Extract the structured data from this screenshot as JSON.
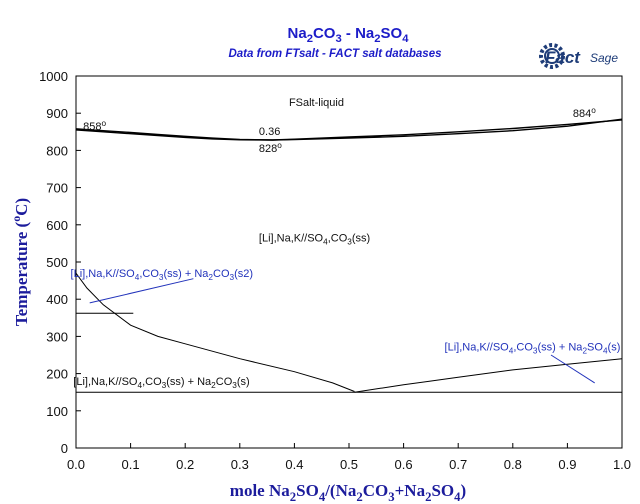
{
  "chart_data": {
    "type": "line",
    "title": {
      "parts": [
        "Na",
        "2",
        "CO",
        "3",
        " - Na",
        "2",
        "SO",
        "4"
      ]
    },
    "subtitle": "Data from FTsalt - FACT salt databases",
    "xlabel": {
      "parts": [
        "mole Na",
        "2",
        "SO",
        "4",
        "/(Na",
        "2",
        "CO",
        "3",
        "+Na",
        "2",
        "SO",
        "4",
        ")"
      ]
    },
    "ylabel": {
      "main": "Temperature (",
      "deg": "o",
      "tail": "C)"
    },
    "xlim": [
      0,
      1
    ],
    "ylim": [
      0,
      1000
    ],
    "x_ticks": [
      "0.0",
      "0.1",
      "0.2",
      "0.3",
      "0.4",
      "0.5",
      "0.6",
      "0.7",
      "0.8",
      "0.9",
      "1.0"
    ],
    "y_ticks": [
      "0",
      "100",
      "200",
      "300",
      "400",
      "500",
      "600",
      "700",
      "800",
      "900",
      "1000"
    ],
    "logo": {
      "brand": "Fact",
      "suffix": "Sage"
    },
    "series": [
      {
        "id": "liquidus",
        "color": "#000000",
        "width": 1.4,
        "points": [
          [
            0,
            858
          ],
          [
            0.05,
            853
          ],
          [
            0.1,
            848
          ],
          [
            0.15,
            843
          ],
          [
            0.2,
            838
          ],
          [
            0.25,
            833
          ],
          [
            0.3,
            829.5
          ],
          [
            0.36,
            828
          ],
          [
            0.4,
            829
          ],
          [
            0.5,
            833
          ],
          [
            0.6,
            838
          ],
          [
            0.7,
            845
          ],
          [
            0.8,
            853
          ],
          [
            0.9,
            865
          ],
          [
            1.0,
            884
          ]
        ]
      },
      {
        "id": "solidus",
        "color": "#000000",
        "width": 1.4,
        "points": [
          [
            0,
            855
          ],
          [
            0.05,
            850
          ],
          [
            0.1,
            845
          ],
          [
            0.15,
            840
          ],
          [
            0.2,
            835
          ],
          [
            0.25,
            831
          ],
          [
            0.3,
            828.5
          ],
          [
            0.36,
            828
          ],
          [
            0.4,
            830
          ],
          [
            0.5,
            836
          ],
          [
            0.6,
            842
          ],
          [
            0.7,
            850
          ],
          [
            0.8,
            859
          ],
          [
            0.9,
            870
          ],
          [
            1.0,
            882
          ]
        ]
      },
      {
        "id": "solvus-left",
        "color": "#000000",
        "width": 1,
        "points": [
          [
            0,
            470
          ],
          [
            0.02,
            430
          ],
          [
            0.05,
            385
          ],
          [
            0.1,
            330
          ],
          [
            0.15,
            300
          ],
          [
            0.2,
            280
          ],
          [
            0.3,
            240
          ],
          [
            0.4,
            205
          ],
          [
            0.47,
            175
          ],
          [
            0.51,
            152
          ]
        ]
      },
      {
        "id": "solvus-right",
        "color": "#000000",
        "width": 1,
        "points": [
          [
            0.51,
            150
          ],
          [
            0.6,
            170
          ],
          [
            0.7,
            190
          ],
          [
            0.8,
            210
          ],
          [
            0.9,
            225
          ],
          [
            1.0,
            240
          ]
        ]
      },
      {
        "id": "eutectoid",
        "color": "#000000",
        "width": 1,
        "points": [
          [
            0,
            150
          ],
          [
            1.0,
            150
          ]
        ]
      },
      {
        "id": "transition-362",
        "color": "#000000",
        "width": 1,
        "points": [
          [
            0,
            362
          ],
          [
            0.105,
            362
          ]
        ]
      },
      {
        "id": "pointer-left",
        "color": "#2233bb",
        "width": 1,
        "points": [
          [
            0.025,
            390
          ],
          [
            0.215,
            455
          ]
        ]
      },
      {
        "id": "pointer-right",
        "color": "#2233bb",
        "width": 1,
        "points": [
          [
            0.87,
            250
          ],
          [
            0.95,
            175
          ]
        ]
      }
    ],
    "labels": [
      {
        "id": "liquid-label",
        "x": 0.39,
        "y": 920,
        "parts": [
          "FSalt-liquid"
        ],
        "color": "black"
      },
      {
        "id": "mp-left",
        "x": 0.013,
        "y": 855,
        "parts": [
          "858"
        ],
        "deg": true,
        "color": "black"
      },
      {
        "id": "mp-right",
        "x": 0.91,
        "y": 890,
        "parts": [
          "884"
        ],
        "deg": true,
        "color": "black"
      },
      {
        "id": "min-x",
        "x": 0.335,
        "y": 842,
        "parts": [
          "0.36"
        ],
        "color": "black"
      },
      {
        "id": "min-t",
        "x": 0.335,
        "y": 796,
        "parts": [
          "828"
        ],
        "deg": true,
        "color": "black"
      },
      {
        "id": "ss-label",
        "x": 0.335,
        "y": 555,
        "parts": [
          "[Li],Na,K//SO",
          "4",
          ",CO",
          "3",
          "(ss)"
        ],
        "color": "black"
      },
      {
        "id": "ss-na2co3-s2",
        "x": -0.01,
        "y": 460,
        "parts": [
          "[Li],Na,K//SO",
          "4",
          ",CO",
          "3",
          "(ss) + Na",
          "2",
          "CO",
          "3",
          "(s2)"
        ],
        "color": "blue"
      },
      {
        "id": "ss-na2so4",
        "x": 0.675,
        "y": 262,
        "parts": [
          "[Li],Na,K//SO",
          "4",
          ",CO",
          "3",
          "(ss) + Na",
          "2",
          "SO",
          "4",
          "(s)"
        ],
        "color": "blue"
      },
      {
        "id": "ss-na2co3-s",
        "x": -0.005,
        "y": 170,
        "parts": [
          "[Li],Na,K//SO",
          "4",
          ",CO",
          "3",
          "(ss) + Na",
          "2",
          "CO",
          "3",
          "(s)"
        ],
        "color": "black"
      }
    ]
  }
}
